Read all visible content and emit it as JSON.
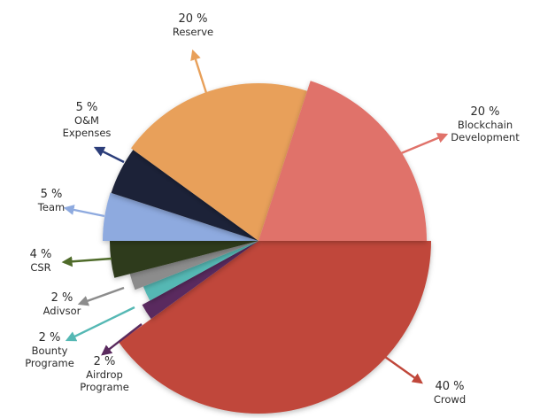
{
  "chart_data": {
    "type": "pie",
    "title": "",
    "slices": [
      {
        "name": "Crowd",
        "value": 40,
        "percent_label": "40 %",
        "name_lines": [
          "Crowd"
        ],
        "color": "#c0473a"
      },
      {
        "name": "Airdrop Programe",
        "value": 2,
        "percent_label": "2 %",
        "name_lines": [
          "Airdrop",
          "Programe"
        ],
        "color": "#5a2a5e"
      },
      {
        "name": "Bounty Programe",
        "value": 2,
        "percent_label": "2 %",
        "name_lines": [
          "Bounty",
          "Programe"
        ],
        "color": "#55b8b4"
      },
      {
        "name": "Adivsor",
        "value": 2,
        "percent_label": "2 %",
        "name_lines": [
          "Adivsor"
        ],
        "color": "#8c8c8c"
      },
      {
        "name": "CSR",
        "value": 4,
        "percent_label": "4 %",
        "name_lines": [
          "CSR"
        ],
        "color": "#2f3b1f"
      },
      {
        "name": "Team",
        "value": 5,
        "percent_label": "5 %",
        "name_lines": [
          "Team"
        ],
        "color": "#8eaadf"
      },
      {
        "name": "O&M Expenses",
        "value": 5,
        "percent_label": "5 %",
        "name_lines": [
          "O&M",
          "Expenses"
        ],
        "color": "#1d2338"
      },
      {
        "name": "Reserve",
        "value": 20,
        "percent_label": "20 %",
        "name_lines": [
          "Reserve"
        ],
        "color": "#e8a05a"
      },
      {
        "name": "Blockchain Development",
        "value": 20,
        "percent_label": "20 %",
        "name_lines": [
          "Blockchain",
          "Development"
        ],
        "color": "#e0726a"
      }
    ],
    "arrow_colors": {
      "Crowd": "#c0473a",
      "Airdrop Programe": "#5a2a5e",
      "Bounty Programe": "#55b8b4",
      "Adivsor": "#8c8c8c",
      "CSR": "#4f6b2a",
      "Team": "#8eaadf",
      "O&M Expenses": "#2c3e7a",
      "Reserve": "#e8a05a",
      "Blockchain Development": "#e0726a"
    }
  }
}
